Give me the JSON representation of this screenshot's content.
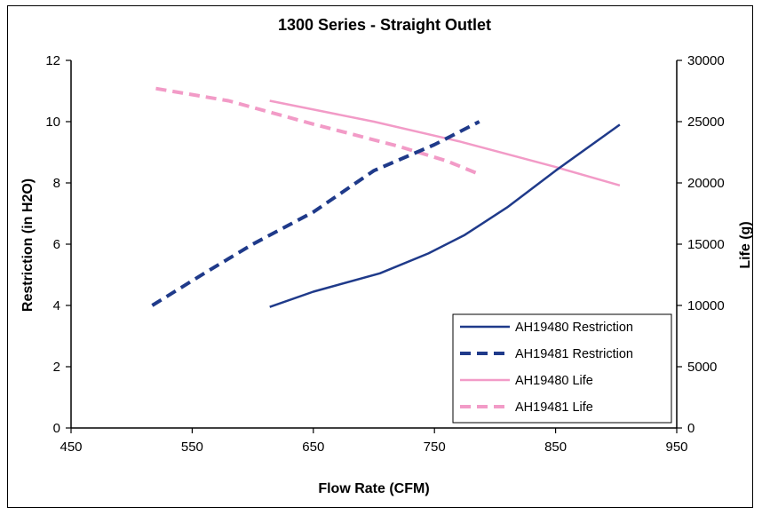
{
  "chart_data": {
    "type": "line",
    "title": "1300 Series - Straight Outlet",
    "xlabel": "Flow Rate (CFM)",
    "ylabel": "Restriction (in H2O)",
    "y2label": "Life (g)",
    "xlim": [
      450,
      950
    ],
    "ylim": [
      0,
      12
    ],
    "y2lim": [
      0,
      30000
    ],
    "xticks": [
      "450",
      "550",
      "650",
      "750",
      "850",
      "950"
    ],
    "yticks": [
      "0",
      "2",
      "4",
      "6",
      "8",
      "10",
      "12"
    ],
    "y2ticks": [
      "0",
      "5000",
      "10000",
      "15000",
      "20000",
      "25000",
      "30000"
    ],
    "grid": false,
    "legend_position": "bottom-right",
    "series": [
      {
        "name": "AH19480 Restriction",
        "axis": "left",
        "style": "solid",
        "color": "#1f3a8a",
        "x": [
          614,
          650,
          705,
          745,
          775,
          810,
          850,
          903
        ],
        "y": [
          3.95,
          4.45,
          5.05,
          5.7,
          6.3,
          7.2,
          8.4,
          9.9
        ]
      },
      {
        "name": "AH19481 Restriction",
        "axis": "left",
        "style": "dashed",
        "color": "#1f3a8a",
        "x": [
          517,
          560,
          600,
          650,
          700,
          750,
          787
        ],
        "y": [
          4.0,
          5.05,
          6.0,
          7.05,
          8.4,
          9.25,
          10.0
        ]
      },
      {
        "name": "AH19480 Life",
        "axis": "right",
        "style": "solid",
        "color": "#f29bc7",
        "x": [
          614,
          700,
          770,
          850,
          903
        ],
        "y": [
          26700,
          25000,
          23400,
          21300,
          19800
        ]
      },
      {
        "name": "AH19481 Life",
        "axis": "right",
        "style": "dashed",
        "color": "#f29bc7",
        "x": [
          520,
          580,
          650,
          720,
          760,
          785
        ],
        "y": [
          27700,
          26700,
          24800,
          23000,
          21800,
          20800
        ]
      }
    ]
  }
}
